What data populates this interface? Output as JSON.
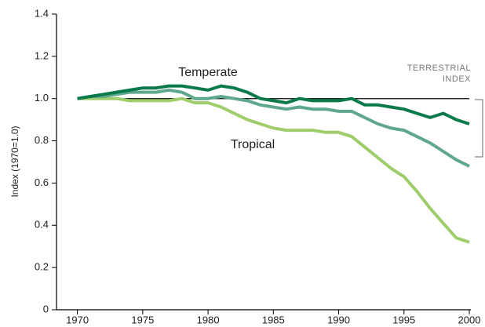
{
  "chart_data": {
    "type": "line",
    "y_label": "Index (1970=1.0)",
    "x": [
      1970,
      1971,
      1972,
      1973,
      1974,
      1975,
      1976,
      1977,
      1978,
      1979,
      1980,
      1981,
      1982,
      1983,
      1984,
      1985,
      1986,
      1987,
      1988,
      1989,
      1990,
      1991,
      1992,
      1993,
      1994,
      1995,
      1996,
      1997,
      1998,
      1999,
      2000
    ],
    "series": [
      {
        "name": "Temperate",
        "color": "#0b7a4b",
        "values": [
          1.0,
          1.01,
          1.02,
          1.03,
          1.04,
          1.05,
          1.05,
          1.06,
          1.06,
          1.05,
          1.04,
          1.06,
          1.05,
          1.03,
          1.0,
          0.99,
          0.98,
          1.0,
          0.99,
          0.99,
          0.99,
          1.0,
          0.97,
          0.97,
          0.96,
          0.95,
          0.93,
          0.91,
          0.93,
          0.9,
          0.88
        ]
      },
      {
        "name": "TERRESTRIAL INDEX",
        "color": "#5fa88c",
        "values": [
          1.0,
          1.01,
          1.01,
          1.02,
          1.03,
          1.03,
          1.03,
          1.04,
          1.03,
          1.0,
          1.0,
          1.01,
          1.0,
          0.99,
          0.97,
          0.96,
          0.95,
          0.96,
          0.95,
          0.95,
          0.94,
          0.94,
          0.91,
          0.88,
          0.86,
          0.85,
          0.82,
          0.79,
          0.75,
          0.71,
          0.68
        ]
      },
      {
        "name": "Tropical",
        "color": "#9fcd6c",
        "values": [
          1.0,
          1.0,
          1.0,
          1.0,
          0.99,
          0.99,
          0.99,
          0.99,
          1.0,
          0.98,
          0.98,
          0.96,
          0.93,
          0.9,
          0.88,
          0.86,
          0.85,
          0.85,
          0.85,
          0.84,
          0.84,
          0.82,
          0.77,
          0.72,
          0.67,
          0.63,
          0.56,
          0.48,
          0.41,
          0.34,
          0.32
        ]
      }
    ],
    "reference_line": 1,
    "xlim": [
      1968.4,
      2000
    ],
    "xticks": [
      1970,
      1975,
      1980,
      1985,
      1990,
      1995,
      2000
    ],
    "ylim": [
      0,
      1.4
    ],
    "yticks": [
      0,
      0.2,
      0.4,
      0.6,
      0.8,
      {
        "value": 1,
        "label": "1.0"
      },
      1.2,
      1.4
    ]
  }
}
